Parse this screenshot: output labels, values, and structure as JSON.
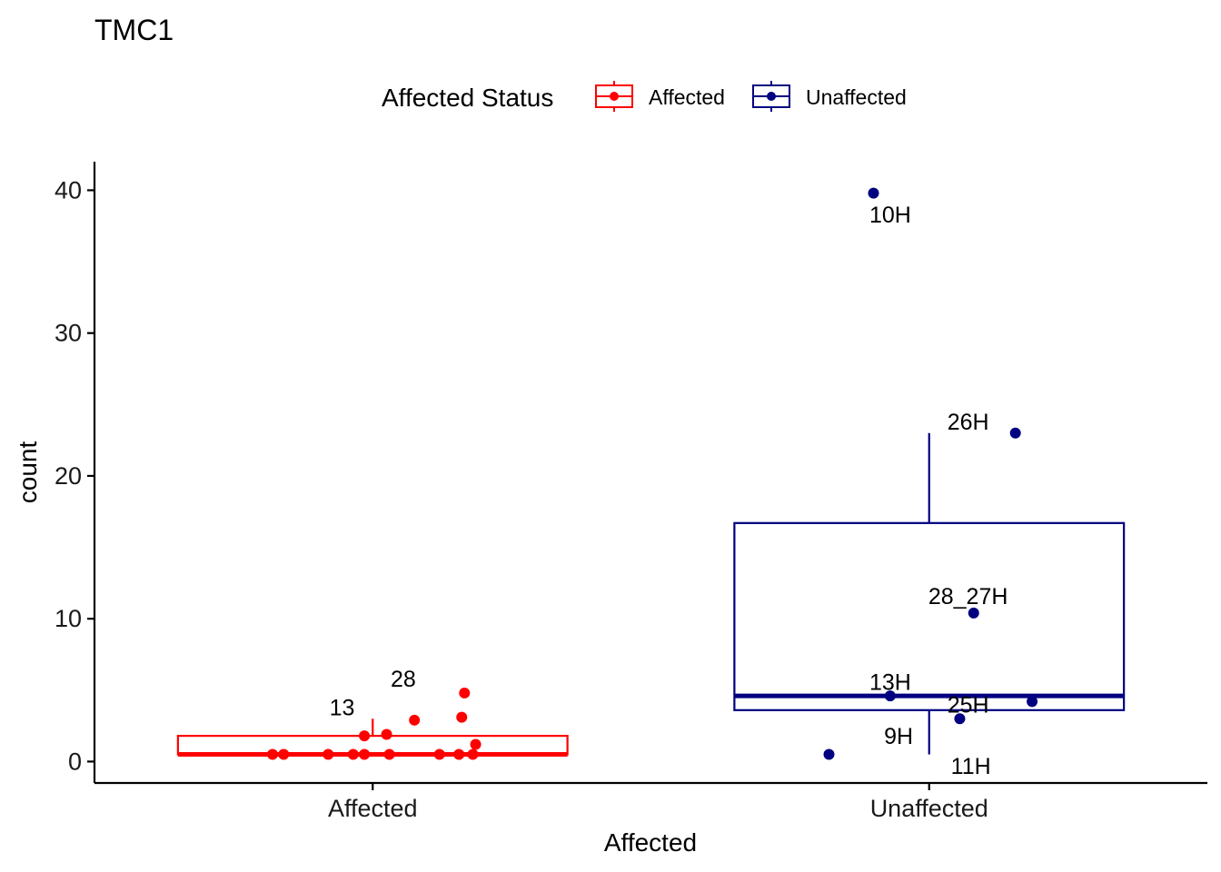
{
  "chart_data": {
    "type": "box",
    "title": "TMC1",
    "xlabel": "Affected",
    "ylabel": "count",
    "categories": [
      "Affected",
      "Unaffected"
    ],
    "yticks": [
      0,
      10,
      20,
      30,
      40
    ],
    "ylim": [
      -1.5,
      42
    ],
    "grid": false,
    "legend": {
      "title": "Affected Status",
      "position": "top",
      "entries": [
        "Affected",
        "Unaffected"
      ]
    },
    "series": [
      {
        "name": "Affected",
        "color": "#FF0000",
        "box": {
          "q1": 0.5,
          "median": 0.5,
          "q3": 1.8,
          "whisker_low": 0.5,
          "whisker_high": 3.0
        },
        "points": [
          {
            "x": -0.18,
            "y": 0.5
          },
          {
            "x": -0.16,
            "y": 0.5
          },
          {
            "x": -0.08,
            "y": 0.5
          },
          {
            "x": -0.035,
            "y": 0.5
          },
          {
            "x": -0.015,
            "y": 0.5
          },
          {
            "x": 0.03,
            "y": 0.5
          },
          {
            "x": 0.12,
            "y": 0.5
          },
          {
            "x": 0.155,
            "y": 0.5
          },
          {
            "x": 0.18,
            "y": 0.5
          },
          {
            "x": -0.015,
            "y": 1.8
          },
          {
            "x": 0.025,
            "y": 1.9
          },
          {
            "x": 0.185,
            "y": 1.2
          },
          {
            "x": 0.075,
            "y": 2.9
          },
          {
            "x": 0.16,
            "y": 3.1
          },
          {
            "x": 0.165,
            "y": 4.8
          }
        ],
        "labels": [
          {
            "text": "13",
            "x": -0.055,
            "y": 3.8
          },
          {
            "text": "28",
            "x": 0.055,
            "y": 5.8
          }
        ]
      },
      {
        "name": "Unaffected",
        "color": "#000080",
        "box": {
          "q1": 3.6,
          "median": 4.6,
          "q3": 16.7,
          "whisker_low": 0.5,
          "whisker_high": 23.0
        },
        "points": [
          {
            "x": -0.18,
            "y": 0.5
          },
          {
            "x": -0.1,
            "y": 39.8
          },
          {
            "x": -0.07,
            "y": 4.6
          },
          {
            "x": 0.055,
            "y": 3.0
          },
          {
            "x": 0.08,
            "y": 10.4
          },
          {
            "x": 0.155,
            "y": 23.0
          },
          {
            "x": 0.185,
            "y": 4.2
          }
        ],
        "labels": [
          {
            "text": "10H",
            "x": -0.07,
            "y": 38.3
          },
          {
            "text": "26H",
            "x": 0.07,
            "y": 23.8
          },
          {
            "text": "28_27H",
            "x": 0.07,
            "y": 11.6
          },
          {
            "text": "13H",
            "x": -0.07,
            "y": 5.6
          },
          {
            "text": "25H",
            "x": 0.07,
            "y": 4.0
          },
          {
            "text": "9H",
            "x": -0.055,
            "y": 1.8
          },
          {
            "text": "11H",
            "x": 0.075,
            "y": -0.3
          }
        ]
      }
    ]
  }
}
